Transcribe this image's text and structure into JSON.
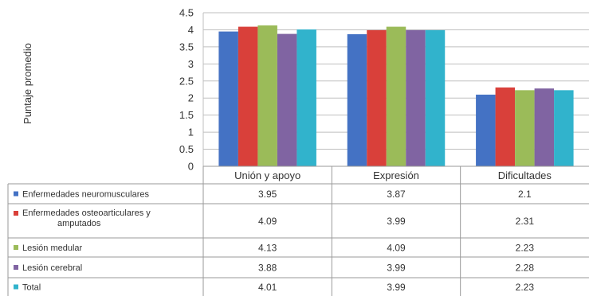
{
  "chart_data": {
    "type": "bar",
    "title": "",
    "xlabel": "",
    "ylabel": "Puntaje promedio",
    "ylim": [
      0,
      4.5
    ],
    "yticks": [
      "0",
      "0.5",
      "1",
      "1.5",
      "2",
      "2.5",
      "3",
      "3.5",
      "4",
      "4.5"
    ],
    "grid": true,
    "legend": "data-table",
    "categories": [
      "Unión y apoyo",
      "Expresión",
      "Dificultades"
    ],
    "series": [
      {
        "name": "Enfermedades neuromusculares",
        "label_lines": [
          "Enfermedades neuromusculares"
        ],
        "color": "#4472C4",
        "values": [
          3.95,
          3.87,
          2.1
        ],
        "value_labels": [
          "3.95",
          "3.87",
          "2.1"
        ]
      },
      {
        "name": "Enfermedades osteoarticulares y amputados",
        "label_lines": [
          "Enfermedades osteoarticulares y",
          "amputados"
        ],
        "color": "#D9403A",
        "values": [
          4.09,
          3.99,
          2.31
        ],
        "value_labels": [
          "4.09",
          "3.99",
          "2.31"
        ]
      },
      {
        "name": "Lesión medular",
        "label_lines": [
          "Lesión medular"
        ],
        "color": "#9BBB59",
        "values": [
          4.13,
          4.09,
          2.23
        ],
        "value_labels": [
          "4.13",
          "4.09",
          "2.23"
        ]
      },
      {
        "name": "Lesión cerebral",
        "label_lines": [
          "Lesión cerebral"
        ],
        "color": "#8064A2",
        "values": [
          3.88,
          3.99,
          2.28
        ],
        "value_labels": [
          "3.88",
          "3.99",
          "2.28"
        ]
      },
      {
        "name": "Total",
        "label_lines": [
          "Total"
        ],
        "color": "#31B3CC",
        "values": [
          4.01,
          3.99,
          2.23
        ],
        "value_labels": [
          "4.01",
          "3.99",
          "2.23"
        ]
      }
    ]
  }
}
